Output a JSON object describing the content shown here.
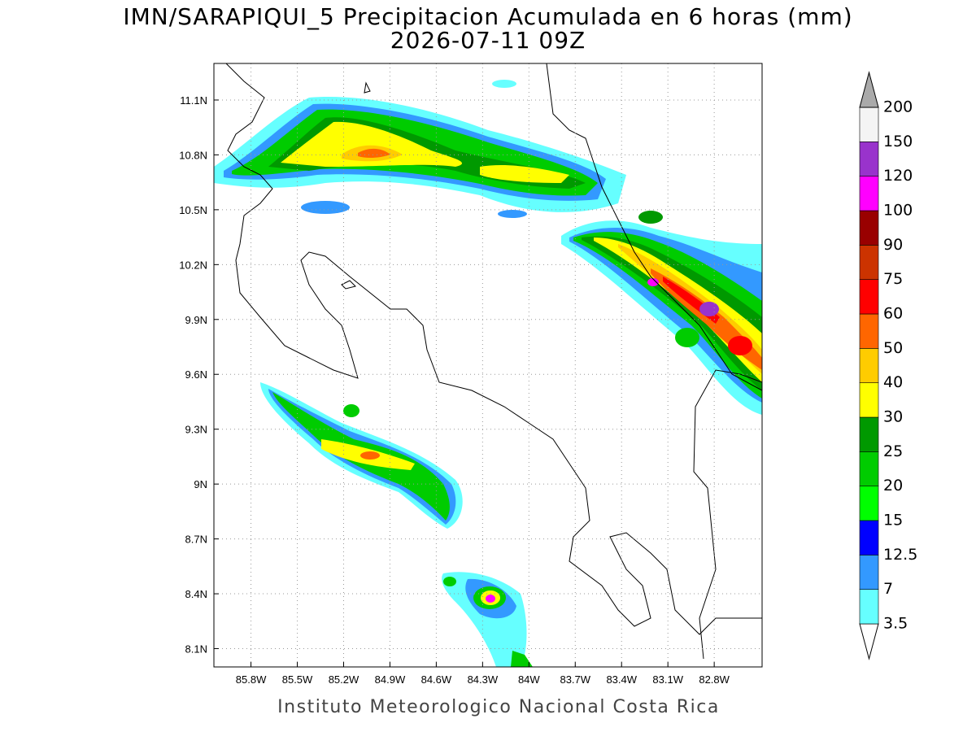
{
  "map": {
    "title": "IMN/SARAPIQUI_5 Precipitacion Acumulada en 6 horas (mm)",
    "subtitle": "2026-07-11 09Z",
    "footer": "Instituto Meteorologico Nacional Costa Rica",
    "lon_range": [
      -86.04,
      -82.49
    ],
    "lat_range": [
      8.0,
      11.3
    ],
    "lon_ticks": [
      {
        "value": -85.8,
        "label": "85.8W"
      },
      {
        "value": -85.5,
        "label": "85.5W"
      },
      {
        "value": -85.2,
        "label": "85.2W"
      },
      {
        "value": -84.9,
        "label": "84.9W"
      },
      {
        "value": -84.6,
        "label": "84.6W"
      },
      {
        "value": -84.3,
        "label": "84.3W"
      },
      {
        "value": -84.0,
        "label": "84W"
      },
      {
        "value": -83.7,
        "label": "83.7W"
      },
      {
        "value": -83.4,
        "label": "83.4W"
      },
      {
        "value": -83.1,
        "label": "83.1W"
      },
      {
        "value": -82.8,
        "label": "82.8W"
      }
    ],
    "lat_ticks": [
      {
        "value": 11.1,
        "label": "11.1N"
      },
      {
        "value": 10.8,
        "label": "10.8N"
      },
      {
        "value": 10.5,
        "label": "10.5N"
      },
      {
        "value": 10.2,
        "label": "10.2N"
      },
      {
        "value": 9.9,
        "label": "9.9N"
      },
      {
        "value": 9.6,
        "label": "9.6N"
      },
      {
        "value": 9.3,
        "label": "9.3N"
      },
      {
        "value": 9.0,
        "label": "9N"
      },
      {
        "value": 8.7,
        "label": "8.7N"
      },
      {
        "value": 8.4,
        "label": "8.4N"
      },
      {
        "value": 8.1,
        "label": "8.1N"
      }
    ],
    "colorbar": {
      "levels": [
        3.5,
        7,
        12.5,
        15,
        20,
        25,
        30,
        40,
        50,
        60,
        75,
        90,
        100,
        120,
        150,
        200
      ],
      "colors": [
        "#ffffff",
        "#66ffff",
        "#3399ff",
        "#0000ff",
        "#00ff00",
        "#00cc00",
        "#009900",
        "#ffff00",
        "#ffcc00",
        "#ff6600",
        "#ff0000",
        "#cc3300",
        "#990000",
        "#ff00ff",
        "#9933cc",
        "#f4f4f4",
        "#aaaaaa"
      ]
    }
  }
}
